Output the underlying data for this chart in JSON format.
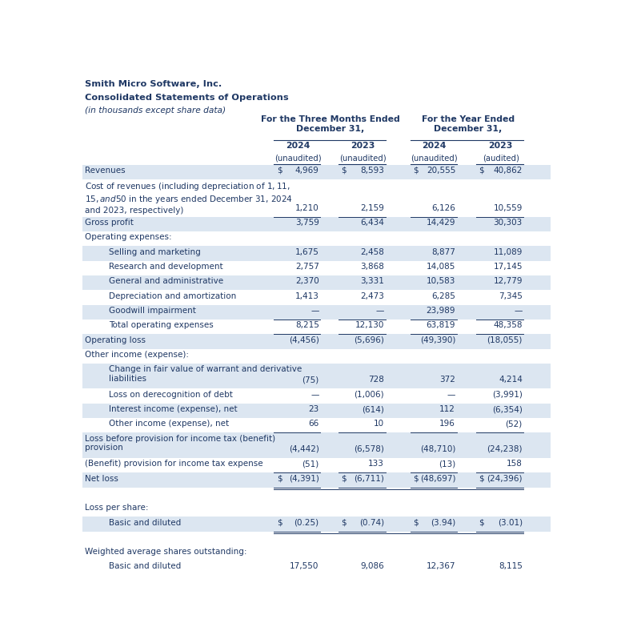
{
  "title1": "Smith Micro Software, Inc.",
  "title2": "Consolidated Statements of Operations",
  "title3": "(in thousands except share data)",
  "col_header1": "For the Three Months Ended\nDecember 31,",
  "col_header2": "For the Year Ended\nDecember 31,",
  "sub_headers": [
    "2024",
    "2023",
    "2024",
    "2023"
  ],
  "sub_sub_headers": [
    "(unaudited)",
    "(unaudited)",
    "(unaudited)",
    "(audited)"
  ],
  "bg_color_light": "#dce6f1",
  "bg_color_white": "#ffffff",
  "text_color": "#1f3864",
  "rows": [
    {
      "label": "Revenues",
      "indent": 0,
      "dollar": true,
      "values": [
        "4,969",
        "8,593",
        "20,555",
        "40,862"
      ],
      "bg": "light",
      "bottom_border": false,
      "double_bottom": false,
      "nlines": 1
    },
    {
      "label": "Cost of revenues (including depreciation of $1, $11,\n$15, and $50 in the years ended December 31, 2024\nand 2023, respectively)",
      "indent": 0,
      "dollar": false,
      "values": [
        "1,210",
        "2,159",
        "6,126",
        "10,559"
      ],
      "bg": "white",
      "bottom_border": true,
      "double_bottom": false,
      "nlines": 3
    },
    {
      "label": "Gross profit",
      "indent": 0,
      "dollar": false,
      "values": [
        "3,759",
        "6,434",
        "14,429",
        "30,303"
      ],
      "bg": "light",
      "bottom_border": false,
      "double_bottom": false,
      "nlines": 1
    },
    {
      "label": "Operating expenses:",
      "indent": 0,
      "dollar": false,
      "values": [
        "",
        "",
        "",
        ""
      ],
      "bg": "white",
      "bottom_border": false,
      "double_bottom": false,
      "nlines": 1
    },
    {
      "label": "Selling and marketing",
      "indent": 1,
      "dollar": false,
      "values": [
        "1,675",
        "2,458",
        "8,877",
        "11,089"
      ],
      "bg": "light",
      "bottom_border": false,
      "double_bottom": false,
      "nlines": 1
    },
    {
      "label": "Research and development",
      "indent": 1,
      "dollar": false,
      "values": [
        "2,757",
        "3,868",
        "14,085",
        "17,145"
      ],
      "bg": "white",
      "bottom_border": false,
      "double_bottom": false,
      "nlines": 1
    },
    {
      "label": "General and administrative",
      "indent": 1,
      "dollar": false,
      "values": [
        "2,370",
        "3,331",
        "10,583",
        "12,779"
      ],
      "bg": "light",
      "bottom_border": false,
      "double_bottom": false,
      "nlines": 1
    },
    {
      "label": "Depreciation and amortization",
      "indent": 1,
      "dollar": false,
      "values": [
        "1,413",
        "2,473",
        "6,285",
        "7,345"
      ],
      "bg": "white",
      "bottom_border": false,
      "double_bottom": false,
      "nlines": 1
    },
    {
      "label": "Goodwill impairment",
      "indent": 1,
      "dollar": false,
      "values": [
        "—",
        "—",
        "23,989",
        "—"
      ],
      "bg": "light",
      "bottom_border": true,
      "double_bottom": false,
      "nlines": 1
    },
    {
      "label": "Total operating expenses",
      "indent": 1,
      "dollar": false,
      "values": [
        "8,215",
        "12,130",
        "63,819",
        "48,358"
      ],
      "bg": "white",
      "bottom_border": true,
      "double_bottom": false,
      "nlines": 1
    },
    {
      "label": "Operating loss",
      "indent": 0,
      "dollar": false,
      "values": [
        "(4,456)",
        "(5,696)",
        "(49,390)",
        "(18,055)"
      ],
      "bg": "light",
      "bottom_border": false,
      "double_bottom": false,
      "nlines": 1
    },
    {
      "label": "Other income (expense):",
      "indent": 0,
      "dollar": false,
      "values": [
        "",
        "",
        "",
        ""
      ],
      "bg": "white",
      "bottom_border": false,
      "double_bottom": false,
      "nlines": 1
    },
    {
      "label": "Change in fair value of warrant and derivative\nliabilities",
      "indent": 1,
      "dollar": false,
      "values": [
        "(75)",
        "728",
        "372",
        "4,214"
      ],
      "bg": "light",
      "bottom_border": false,
      "double_bottom": false,
      "nlines": 2
    },
    {
      "label": "Loss on derecognition of debt",
      "indent": 1,
      "dollar": false,
      "values": [
        "—",
        "(1,006)",
        "—",
        "(3,991)"
      ],
      "bg": "white",
      "bottom_border": false,
      "double_bottom": false,
      "nlines": 1
    },
    {
      "label": "Interest income (expense), net",
      "indent": 1,
      "dollar": false,
      "values": [
        "23",
        "(614)",
        "112",
        "(6,354)"
      ],
      "bg": "light",
      "bottom_border": false,
      "double_bottom": false,
      "nlines": 1
    },
    {
      "label": "Other income (expense), net",
      "indent": 1,
      "dollar": false,
      "values": [
        "66",
        "10",
        "196",
        "(52)"
      ],
      "bg": "white",
      "bottom_border": true,
      "double_bottom": false,
      "nlines": 1
    },
    {
      "label": "Loss before provision for income tax (benefit)\nprovision",
      "indent": 0,
      "dollar": false,
      "values": [
        "(4,442)",
        "(6,578)",
        "(48,710)",
        "(24,238)"
      ],
      "bg": "light",
      "bottom_border": false,
      "double_bottom": false,
      "nlines": 2
    },
    {
      "label": "(Benefit) provision for income tax expense",
      "indent": 0,
      "dollar": false,
      "values": [
        "(51)",
        "133",
        "(13)",
        "158"
      ],
      "bg": "white",
      "bottom_border": true,
      "double_bottom": false,
      "nlines": 1
    },
    {
      "label": "Net loss",
      "indent": 0,
      "dollar": true,
      "values": [
        "(4,391)",
        "(6,711)",
        "(48,697)",
        "(24,396)"
      ],
      "bg": "light",
      "bottom_border": true,
      "double_bottom": true,
      "nlines": 1
    },
    {
      "label": "",
      "indent": 0,
      "dollar": false,
      "values": [
        "",
        "",
        "",
        ""
      ],
      "bg": "white",
      "bottom_border": false,
      "double_bottom": false,
      "nlines": 1
    },
    {
      "label": "Loss per share:",
      "indent": 0,
      "dollar": false,
      "values": [
        "",
        "",
        "",
        ""
      ],
      "bg": "white",
      "bottom_border": false,
      "double_bottom": false,
      "nlines": 1
    },
    {
      "label": "Basic and diluted",
      "indent": 1,
      "dollar": true,
      "values": [
        "(0.25)",
        "(0.74)",
        "(3.94)",
        "(3.01)"
      ],
      "bg": "light",
      "bottom_border": true,
      "double_bottom": true,
      "nlines": 1
    },
    {
      "label": "",
      "indent": 0,
      "dollar": false,
      "values": [
        "",
        "",
        "",
        ""
      ],
      "bg": "white",
      "bottom_border": false,
      "double_bottom": false,
      "nlines": 1
    },
    {
      "label": "Weighted average shares outstanding:",
      "indent": 0,
      "dollar": false,
      "values": [
        "",
        "",
        "",
        ""
      ],
      "bg": "white",
      "bottom_border": false,
      "double_bottom": false,
      "nlines": 1
    },
    {
      "label": "Basic and diluted",
      "indent": 1,
      "dollar": false,
      "values": [
        "17,550",
        "9,086",
        "12,367",
        "8,115"
      ],
      "bg": "light",
      "bottom_border": true,
      "double_bottom": false,
      "nlines": 1
    }
  ]
}
